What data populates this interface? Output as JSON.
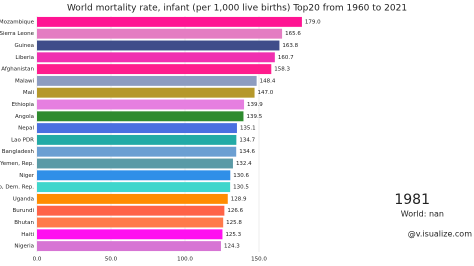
{
  "chart_data": {
    "type": "barh",
    "title": "World mortality rate, infant (per 1,000 live births) Top20 from 1960 to 2021",
    "categories": [
      "Mozambique",
      "Sierra Leone",
      "Guinea",
      "Liberia",
      "Afghanistan",
      "Malawi",
      "Mali",
      "Ethiopia",
      "Angola",
      "Nepal",
      "Lao PDR",
      "Bangladesh",
      "Yemen, Rep.",
      "Niger",
      "Congo, Dem. Rep.",
      "Uganda",
      "Burundi",
      "Bhutan",
      "Haiti",
      "Nigeria"
    ],
    "values": [
      179.0,
      165.6,
      163.8,
      160.7,
      158.3,
      148.4,
      147.0,
      139.9,
      139.5,
      135.1,
      134.7,
      134.6,
      132.4,
      130.6,
      130.5,
      128.9,
      126.6,
      125.8,
      125.3,
      124.3
    ],
    "value_labels": [
      "179.0",
      "165.6",
      "163.8",
      "160.7",
      "158.3",
      "148.4",
      "147.0",
      "139.9",
      "139.5",
      "135.1",
      "134.7",
      "134.6",
      "132.4",
      "130.6",
      "130.5",
      "128.9",
      "126.6",
      "125.8",
      "125.3",
      "124.3"
    ],
    "colors": [
      "#ff1493",
      "#e47cc2",
      "#3f4d8a",
      "#f02fb0",
      "#ff1c8d",
      "#8d9cc0",
      "#b5982a",
      "#e67fe0",
      "#2e8b2e",
      "#4a6fe0",
      "#22aaa6",
      "#6b9fd2",
      "#5a9aa6",
      "#2f8fe8",
      "#3fd6cc",
      "#ff8c00",
      "#ff6347",
      "#ff7a4a",
      "#ff10f0",
      "#d774d4"
    ],
    "xlim": [
      0,
      200
    ],
    "xticks": [
      {
        "value": 0,
        "label": "0.0"
      },
      {
        "value": 50,
        "label": "50.0"
      },
      {
        "value": 100,
        "label": "100.0"
      },
      {
        "value": 150,
        "label": "150.0"
      }
    ],
    "grid": true,
    "annotations": [
      "1981",
      "World: nan",
      "@v.isualize.com"
    ]
  }
}
